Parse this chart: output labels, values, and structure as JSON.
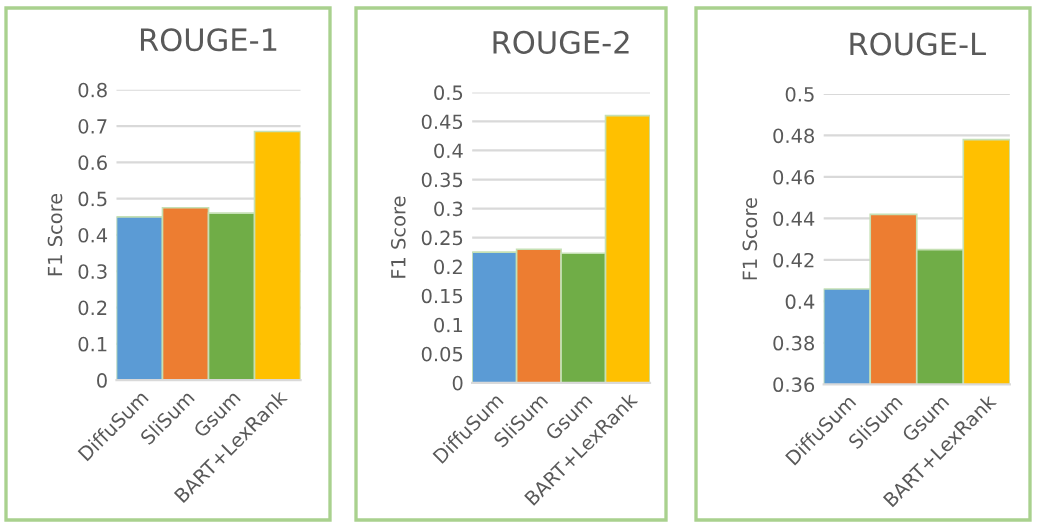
{
  "chart_data": [
    {
      "type": "bar",
      "title": "ROUGE-1",
      "ylabel": "F1 Score",
      "categories": [
        "DiffuSum",
        "SliSum",
        "Gsum",
        "BART+LexRank"
      ],
      "values": [
        0.45,
        0.475,
        0.46,
        0.685
      ],
      "colors": [
        "#5b9bd5",
        "#ed7d31",
        "#70ad47",
        "#ffc000"
      ],
      "ylim": [
        0,
        0.8
      ],
      "yticks": [
        {
          "value": 0,
          "label": "0"
        },
        0.1,
        0.2,
        0.3,
        0.4,
        0.5,
        0.6,
        0.7,
        0.8
      ],
      "grid": "y"
    },
    {
      "type": "bar",
      "title": "ROUGE-2",
      "ylabel": "F1 Score",
      "categories": [
        "DiffuSum",
        "SliSum",
        "Gsum",
        "BART+LexRank"
      ],
      "values": [
        0.225,
        0.23,
        0.223,
        0.46
      ],
      "colors": [
        "#5b9bd5",
        "#ed7d31",
        "#70ad47",
        "#ffc000"
      ],
      "ylim": [
        0,
        0.5
      ],
      "yticks": [
        {
          "value": 0,
          "label": "0"
        },
        0.05,
        0.1,
        0.15,
        0.2,
        0.25,
        0.3,
        0.35,
        0.4,
        0.45,
        0.5
      ],
      "grid": "y"
    },
    {
      "type": "bar",
      "title": "ROUGE-L",
      "ylabel": "F1 Score",
      "categories": [
        "DiffuSum",
        "SliSum",
        "Gsum",
        "BART+LexRank"
      ],
      "values": [
        0.406,
        0.442,
        0.425,
        0.478
      ],
      "colors": [
        "#5b9bd5",
        "#ed7d31",
        "#70ad47",
        "#ffc000"
      ],
      "ylim": [
        0.36,
        0.5
      ],
      "yticks": [
        0.36,
        0.38,
        0.4,
        0.42,
        0.44,
        0.46,
        0.48,
        0.5
      ],
      "grid": "y"
    }
  ]
}
